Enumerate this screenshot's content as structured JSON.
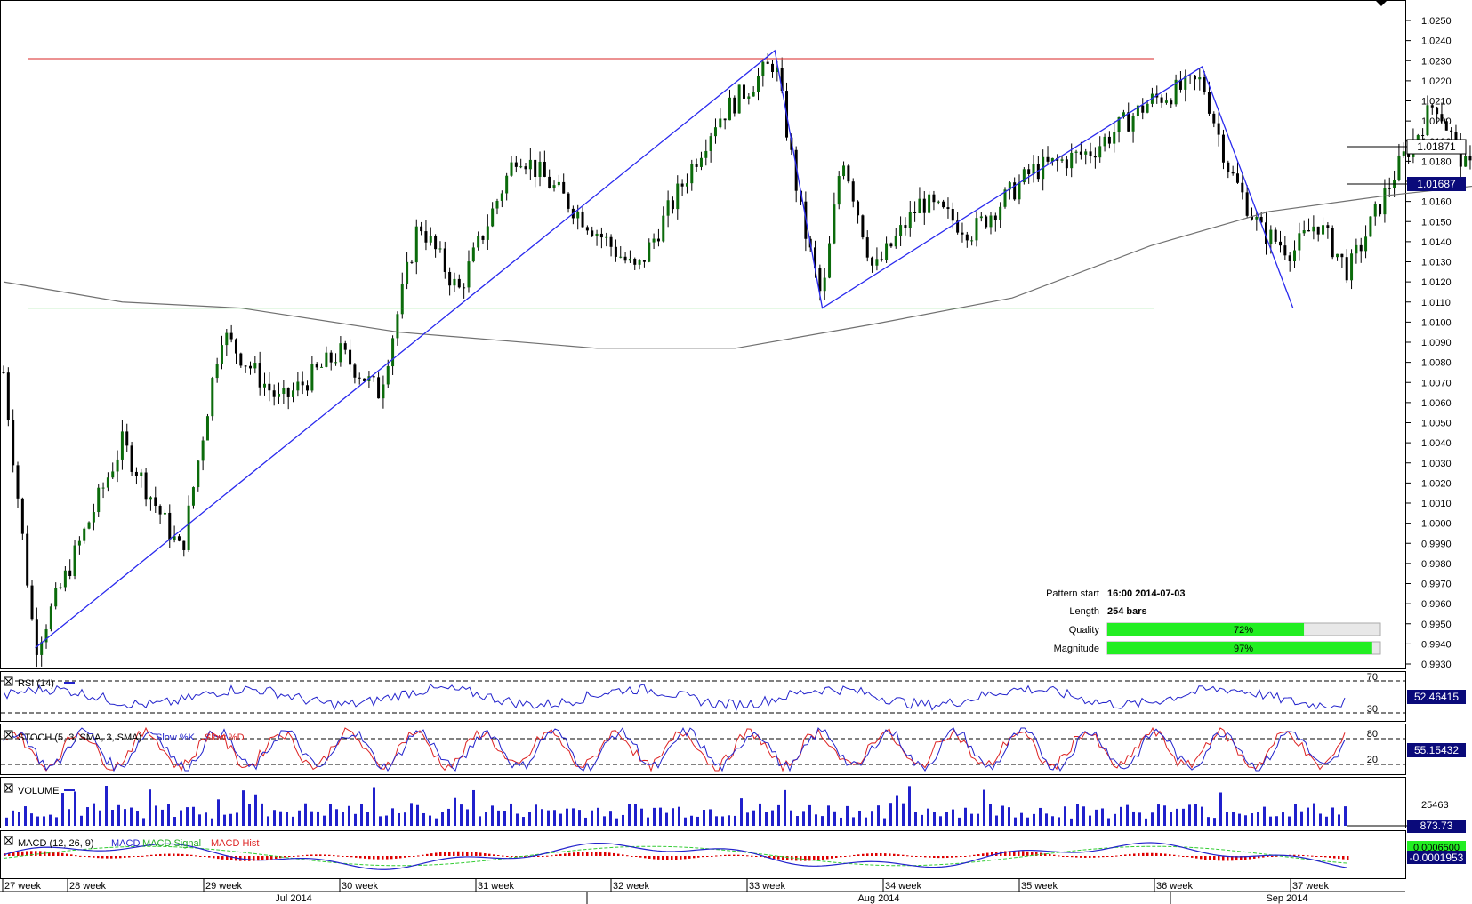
{
  "instrument_note": "",
  "price_axis": {
    "min": 0.993,
    "max": 1.025,
    "step": 0.001,
    "current_price": "1.01871",
    "ma_price": "1.01687"
  },
  "time_axis": {
    "week_labels": [
      "27 week",
      "28 week",
      "29 week",
      "30 week",
      "31 week",
      "32 week",
      "33 week",
      "34 week",
      "35 week",
      "36 week",
      "37 week"
    ],
    "month_labels": [
      "Jul 2014",
      "Aug 2014",
      "Sep 2014"
    ]
  },
  "pattern_info": {
    "start_label": "Pattern start",
    "start_value": "16:00 2014-07-03",
    "length_label": "Length",
    "length_value": "254 bars",
    "quality_label": "Quality",
    "quality_value": "72%",
    "quality_pct": 72,
    "magnitude_label": "Magnitude",
    "magnitude_value": "97%",
    "magnitude_pct": 97
  },
  "pattern_lines": {
    "resistance_price": 1.0231,
    "support_price": 1.0107,
    "zigzag": [
      {
        "bar": 8,
        "price": 0.9938
      },
      {
        "bar": 195,
        "price": 1.0235
      },
      {
        "bar": 207,
        "price": 1.0107
      },
      {
        "bar": 303,
        "price": 1.0227
      },
      {
        "bar": 326,
        "price": 1.0107
      }
    ]
  },
  "indicators": {
    "rsi": {
      "label": "RSI (14)",
      "value": "52.46415",
      "level_high": "70",
      "level_low": "30"
    },
    "stoch": {
      "label": "STOCH (5, 3, SMA, 3, SMA)",
      "legend_slow_k": "Slow %K",
      "legend_slow_d": "Slow %D",
      "value": "55.15432",
      "level_high": "80",
      "level_low": "20"
    },
    "volume": {
      "label": "VOLUME",
      "value": "873.73",
      "scale_value": "25463"
    },
    "macd": {
      "label": "MACD (12, 26, 9)",
      "legend_macd": "MACD",
      "legend_signal": "MACD Signal",
      "legend_hist": "MACD Hist",
      "value_main": "0.0006500",
      "value_hist": "-0.0001953"
    }
  },
  "colors": {
    "candle_up": "#0b6b0b",
    "candle_down": "#000000",
    "resistance": "#e05050",
    "support": "#33cc33",
    "zigzag": "#2a2aee",
    "ma": "#707070",
    "rsi_line": "#2222cc",
    "stoch_k": "#2222cc",
    "stoch_d": "#dd2222",
    "volume_bar": "#2020cc",
    "macd_line": "#2222cc",
    "macd_signal": "#33cc33",
    "macd_hist": "#dd0000",
    "bar_fill": "#22ee22",
    "value_box_bg": "#0a0a7a"
  },
  "chart_data": {
    "type": "candlestick",
    "x_unit": "bar",
    "bars_total": 340,
    "key_points": [
      {
        "bar": 0,
        "price": 1.0075
      },
      {
        "bar": 8,
        "price": 0.9938
      },
      {
        "bar": 30,
        "price": 1.004
      },
      {
        "bar": 45,
        "price": 0.9985
      },
      {
        "bar": 55,
        "price": 1.0095
      },
      {
        "bar": 70,
        "price": 1.006
      },
      {
        "bar": 85,
        "price": 1.0085
      },
      {
        "bar": 95,
        "price": 1.0065
      },
      {
        "bar": 105,
        "price": 1.015
      },
      {
        "bar": 115,
        "price": 1.0115
      },
      {
        "bar": 130,
        "price": 1.0185
      },
      {
        "bar": 145,
        "price": 1.0155
      },
      {
        "bar": 160,
        "price": 1.0125
      },
      {
        "bar": 180,
        "price": 1.02
      },
      {
        "bar": 195,
        "price": 1.023
      },
      {
        "bar": 202,
        "price": 1.015
      },
      {
        "bar": 207,
        "price": 1.011
      },
      {
        "bar": 212,
        "price": 1.0185
      },
      {
        "bar": 220,
        "price": 1.0125
      },
      {
        "bar": 232,
        "price": 1.016
      },
      {
        "bar": 245,
        "price": 1.0145
      },
      {
        "bar": 260,
        "price": 1.0175
      },
      {
        "bar": 275,
        "price": 1.0185
      },
      {
        "bar": 290,
        "price": 1.021
      },
      {
        "bar": 303,
        "price": 1.022
      },
      {
        "bar": 310,
        "price": 1.0175
      },
      {
        "bar": 318,
        "price": 1.0145
      },
      {
        "bar": 326,
        "price": 1.0135
      },
      {
        "bar": 332,
        "price": 1.015
      },
      {
        "bar": 340,
        "price": 1.0125
      },
      {
        "bar": 352,
        "price": 1.0175
      },
      {
        "bar": 362,
        "price": 1.021
      },
      {
        "bar": 370,
        "price": 1.0175
      },
      {
        "bar": 378,
        "price": 1.0187
      }
    ],
    "moving_average": [
      {
        "bar": 0,
        "price": 1.012
      },
      {
        "bar": 30,
        "price": 1.011
      },
      {
        "bar": 60,
        "price": 1.0107
      },
      {
        "bar": 100,
        "price": 1.0095
      },
      {
        "bar": 150,
        "price": 1.0087
      },
      {
        "bar": 185,
        "price": 1.0087
      },
      {
        "bar": 220,
        "price": 1.0099
      },
      {
        "bar": 255,
        "price": 1.0112
      },
      {
        "bar": 290,
        "price": 1.0138
      },
      {
        "bar": 320,
        "price": 1.0155
      },
      {
        "bar": 350,
        "price": 1.0163
      },
      {
        "bar": 378,
        "price": 1.0169
      }
    ],
    "ylim": [
      0.993,
      1.025
    ]
  }
}
